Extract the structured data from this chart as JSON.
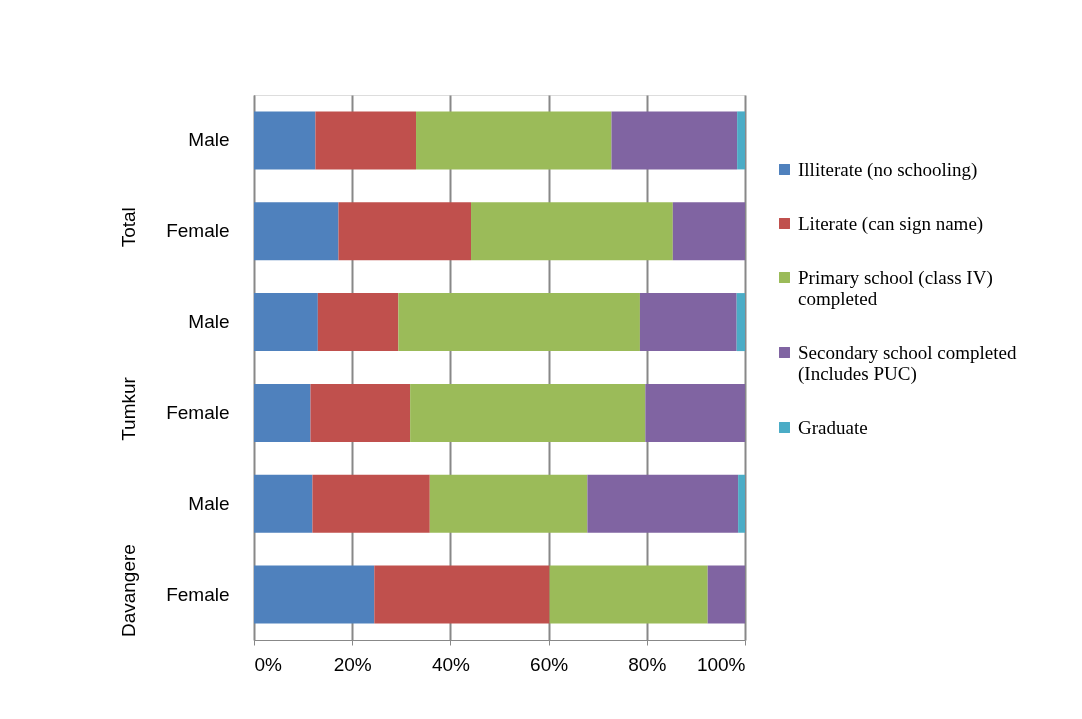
{
  "chart_data": {
    "type": "bar",
    "orientation": "horizontal",
    "stacked": true,
    "categories": [
      "Male",
      "Female",
      "Male",
      "Female",
      "Male",
      "Female"
    ],
    "annotations": [
      "Total",
      "Tumkur",
      "Davangere"
    ],
    "series": [
      {
        "name": "Illiterate (no schooling)",
        "color": "#4f81bd",
        "values": [
          12.5,
          17.2,
          13.0,
          11.5,
          11.9,
          24.5
        ]
      },
      {
        "name": "Literate (can sign name)",
        "color": "#c0504d",
        "values": [
          20.5,
          27.0,
          16.4,
          20.3,
          23.9,
          35.7
        ]
      },
      {
        "name": "Primary school (class IV) completed",
        "color": "#9bbb59",
        "values": [
          39.8,
          41.1,
          49.2,
          47.9,
          32.1,
          32.2
        ]
      },
      {
        "name": "Secondary school completed (Includes PUC)",
        "color": "#8064a2",
        "values": [
          25.6,
          14.7,
          19.7,
          20.3,
          30.7,
          7.6
        ]
      },
      {
        "name": "Graduate",
        "color": "#4bacc6",
        "values": [
          1.6,
          0,
          1.7,
          0,
          1.4,
          0
        ]
      }
    ],
    "xlim": [
      0,
      100
    ],
    "xticks": [
      {
        "value": 0,
        "label": "0%"
      },
      {
        "value": 20,
        "label": "20%"
      },
      {
        "value": 40,
        "label": "40%"
      },
      {
        "value": 60,
        "label": "60%"
      },
      {
        "value": 80,
        "label": "80%"
      },
      {
        "value": 100,
        "label": "100%"
      }
    ],
    "grid": "x",
    "legend": "right"
  }
}
